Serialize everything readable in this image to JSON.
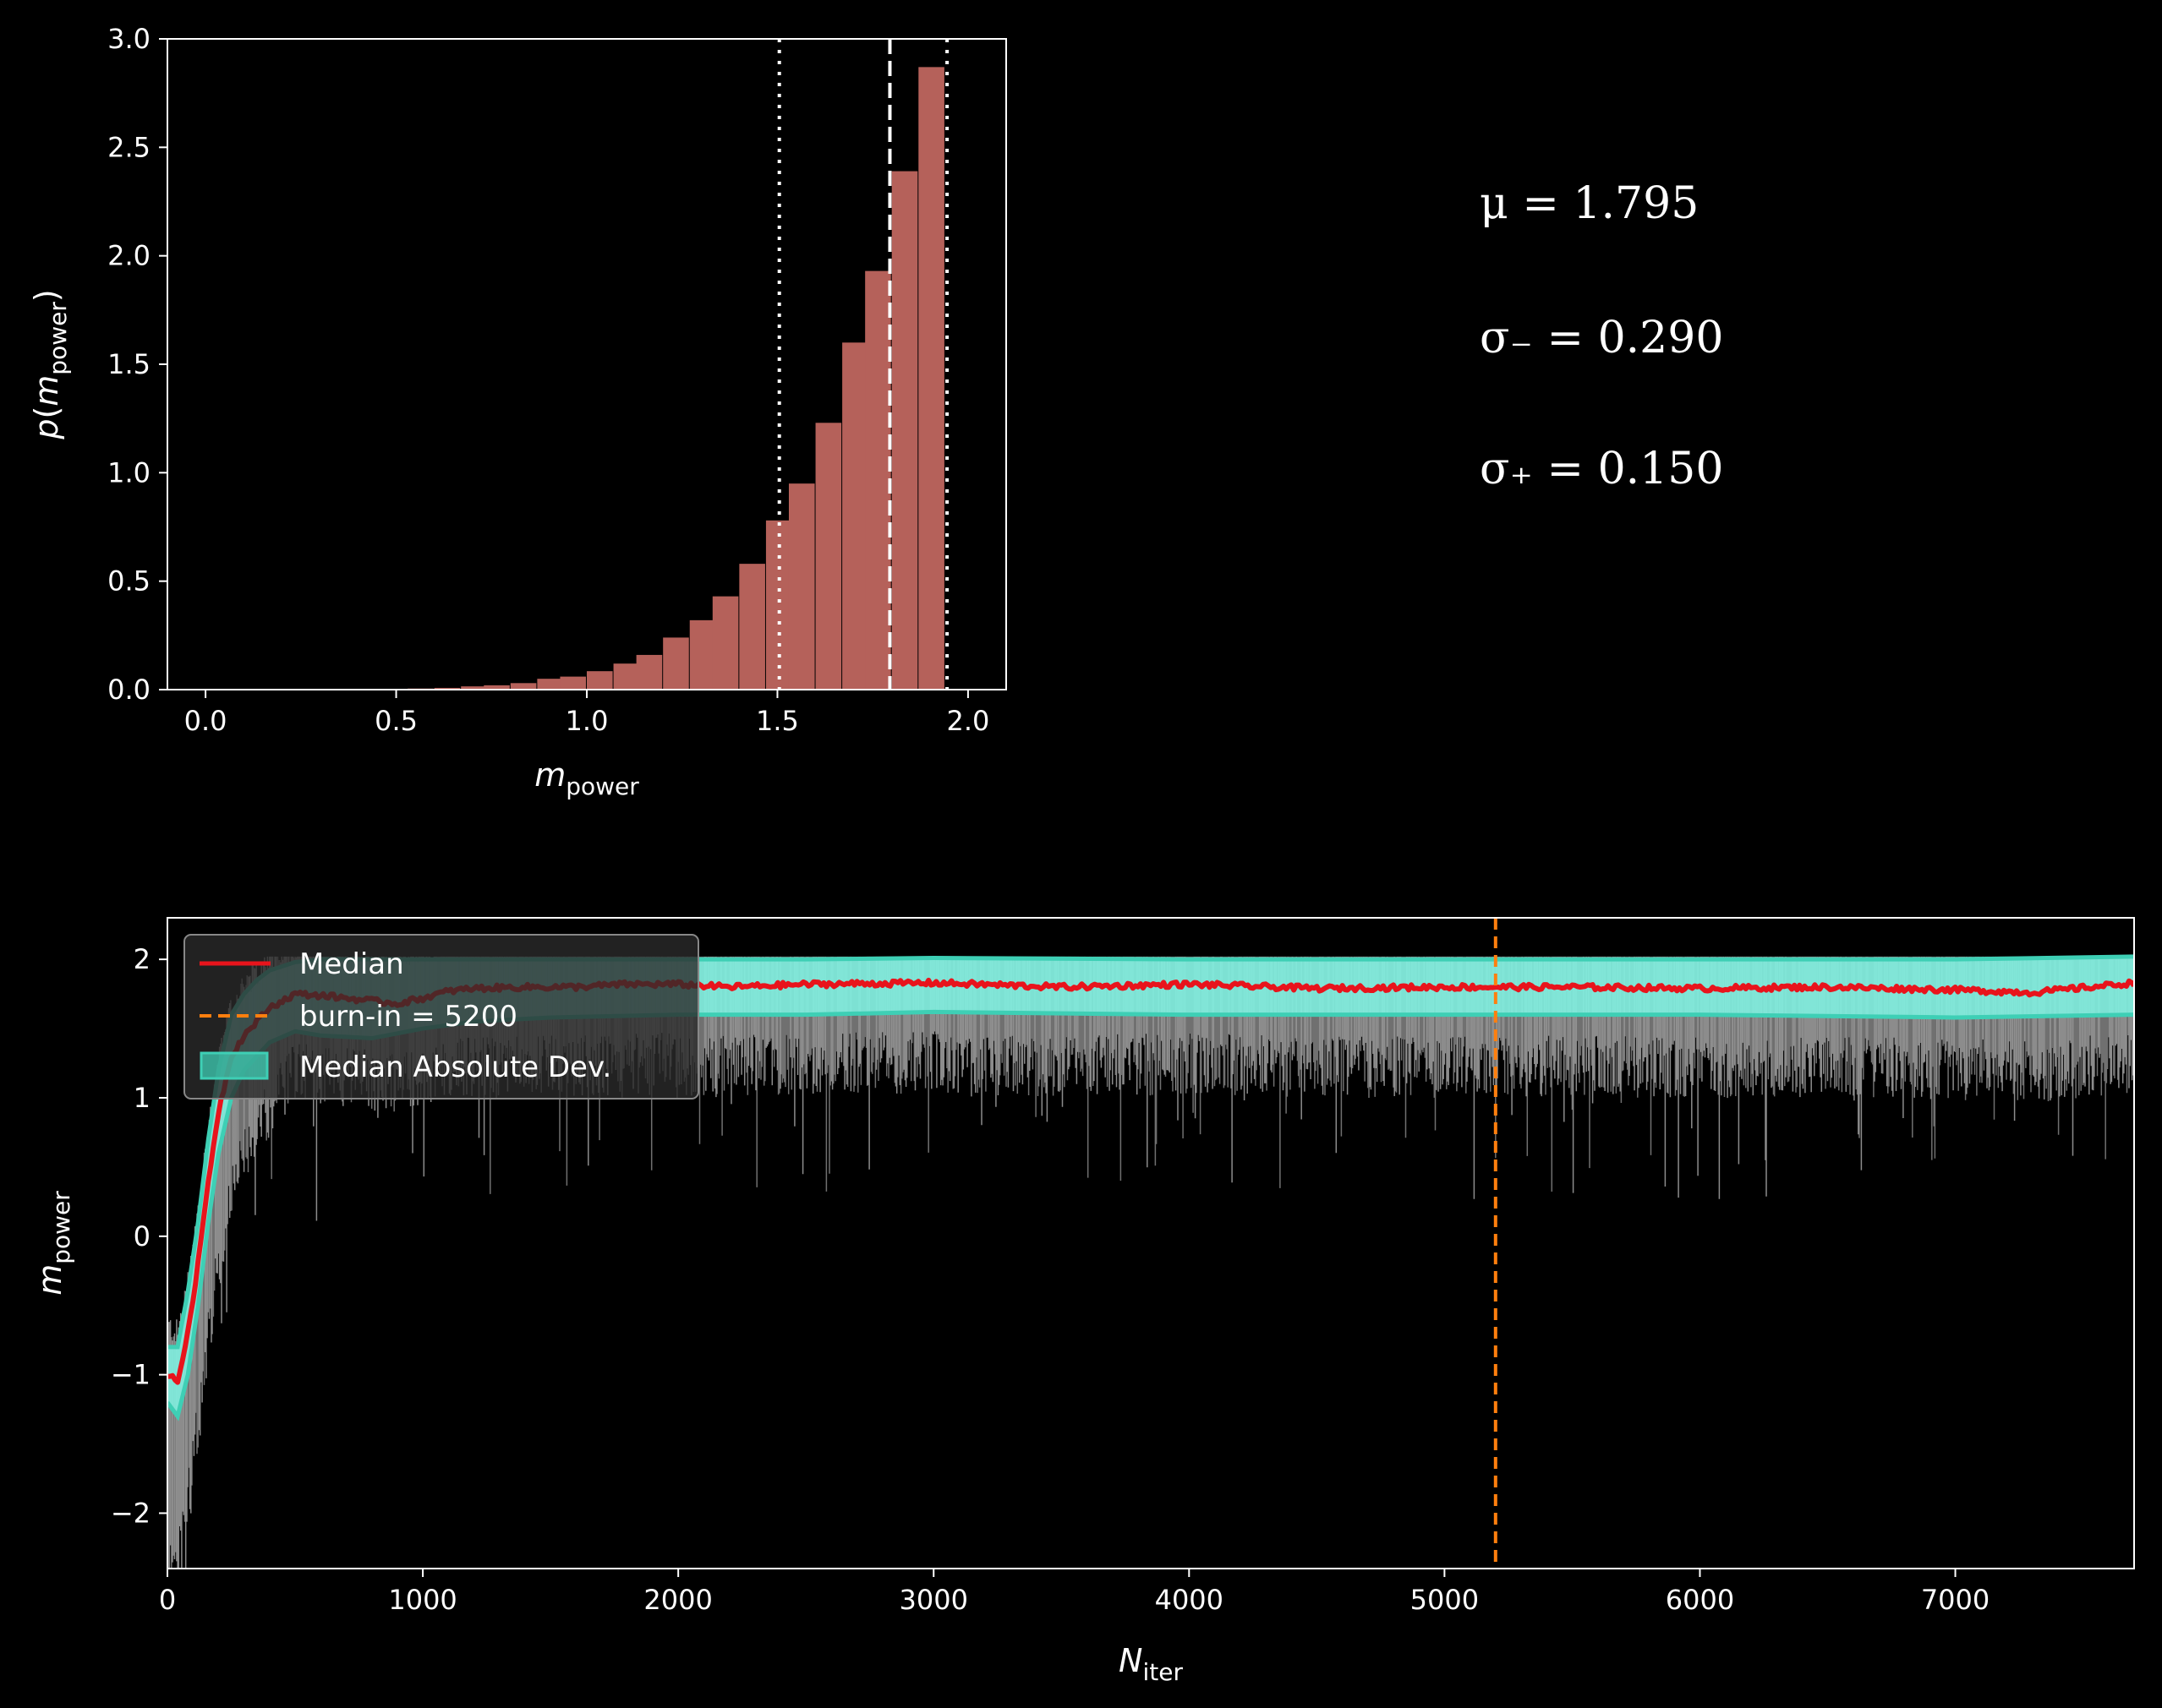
{
  "colors": {
    "background": "#000000",
    "hist_bar": "#b5615a",
    "median_line": "#e8141c",
    "burnin_line": "#ff7f0e",
    "mad_fill": "#7ff5e4",
    "mad_edge": "#3ecfb5",
    "walkers": "#ffffff",
    "axes": "#ffffff"
  },
  "stats": {
    "mu": "μ = 1.795",
    "sigma_minus": "σ₋ = 0.290",
    "sigma_plus": "σ₊ = 0.150"
  },
  "chart_data": [
    {
      "type": "bar",
      "name": "posterior-histogram",
      "xlabel": "m_power",
      "ylabel": "p(m_power)",
      "xlim": [
        -0.1,
        2.1
      ],
      "ylim": [
        0,
        3.0
      ],
      "xticks": [
        "0.0",
        "0.5",
        "1.0",
        "1.5",
        "2.0"
      ],
      "yticks": [
        "0.0",
        "0.5",
        "1.0",
        "1.5",
        "2.0",
        "2.5",
        "3.0"
      ],
      "bin_width": 0.0667,
      "bin_starts": [
        0.53,
        0.6,
        0.67,
        0.73,
        0.8,
        0.87,
        0.93,
        1.0,
        1.07,
        1.13,
        1.2,
        1.27,
        1.33,
        1.4,
        1.47,
        1.53,
        1.6,
        1.67,
        1.73,
        1.8,
        1.87,
        1.93
      ],
      "values": [
        0.005,
        0.008,
        0.015,
        0.02,
        0.03,
        0.05,
        0.06,
        0.085,
        0.12,
        0.16,
        0.24,
        0.32,
        0.43,
        0.58,
        0.78,
        0.95,
        1.23,
        1.6,
        1.93,
        2.39,
        2.87,
        0.0
      ],
      "vlines": [
        {
          "x": 1.505,
          "style": "dotted"
        },
        {
          "x": 1.795,
          "style": "dashed"
        },
        {
          "x": 1.945,
          "style": "dotted"
        }
      ],
      "grid": false
    },
    {
      "type": "line",
      "name": "trace-plot",
      "xlabel": "N_iter",
      "ylabel": "m_power",
      "xlim": [
        0,
        7700
      ],
      "ylim": [
        -2.4,
        2.3
      ],
      "xticks": [
        "0",
        "1000",
        "2000",
        "3000",
        "4000",
        "5000",
        "6000",
        "7000"
      ],
      "yticks": [
        "−2",
        "−1",
        "0",
        "1",
        "2"
      ],
      "series": [
        {
          "name": "Median",
          "x": [
            0,
            40,
            80,
            120,
            160,
            200,
            250,
            300,
            350,
            400,
            500,
            600,
            700,
            800,
            900,
            1000,
            1100,
            1200,
            1400,
            1600,
            1800,
            2000,
            2200,
            2500,
            3000,
            3500,
            4000,
            4500,
            5000,
            5500,
            6000,
            6500,
            7000,
            7300,
            7700
          ],
          "y": [
            -1.0,
            -1.05,
            -0.7,
            -0.2,
            0.4,
            0.9,
            1.3,
            1.45,
            1.55,
            1.65,
            1.75,
            1.74,
            1.72,
            1.7,
            1.68,
            1.72,
            1.77,
            1.79,
            1.8,
            1.8,
            1.82,
            1.82,
            1.8,
            1.82,
            1.83,
            1.8,
            1.82,
            1.79,
            1.8,
            1.8,
            1.79,
            1.8,
            1.78,
            1.76,
            1.83
          ]
        },
        {
          "name": "burn-in = 5200",
          "x_value": 5200
        },
        {
          "name": "Median Absolute Dev.",
          "x": [
            0,
            40,
            80,
            120,
            160,
            200,
            250,
            300,
            350,
            400,
            500,
            600,
            800,
            1000,
            1200,
            1500,
            2000,
            2500,
            3000,
            4000,
            5000,
            6000,
            7000,
            7700
          ],
          "lower": [
            -1.2,
            -1.3,
            -1.0,
            -0.5,
            0.1,
            0.6,
            1.0,
            1.2,
            1.3,
            1.4,
            1.48,
            1.45,
            1.43,
            1.5,
            1.55,
            1.58,
            1.6,
            1.6,
            1.62,
            1.6,
            1.6,
            1.6,
            1.58,
            1.6
          ],
          "upper": [
            -0.8,
            -0.8,
            -0.4,
            0.1,
            0.7,
            1.2,
            1.6,
            1.75,
            1.85,
            1.92,
            1.98,
            2.0,
            2.0,
            2.0,
            2.0,
            2.0,
            2.0,
            2.0,
            2.01,
            2.0,
            2.0,
            2.0,
            2.0,
            2.02
          ]
        }
      ],
      "walkers_note": "",
      "legend": {
        "placement": "upper-left",
        "entries": [
          "Median",
          "burn-in = 5200",
          "Median Absolute Dev."
        ]
      },
      "grid": false
    }
  ]
}
